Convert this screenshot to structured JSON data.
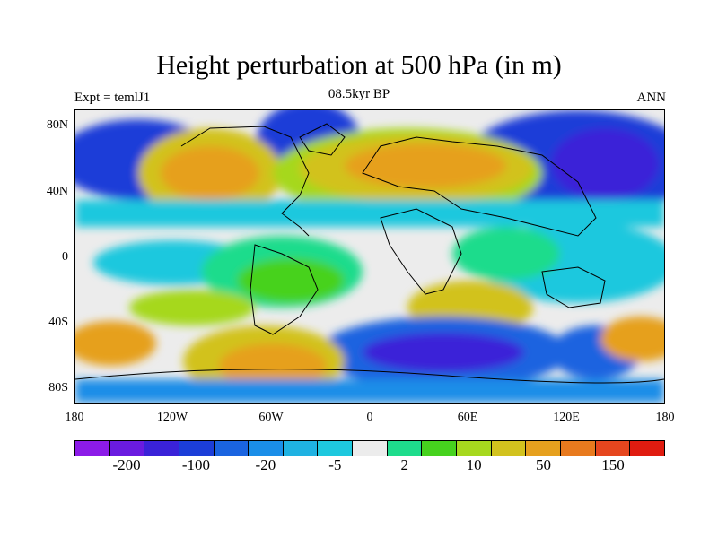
{
  "title": "Height perturbation at 500 hPa (in m)",
  "subtitle_left": "Expt = temlJ1",
  "subtitle_center": "08.5kyr BP",
  "subtitle_right": "ANN",
  "y_ticks": [
    "80N",
    "40N",
    "0",
    "40S",
    "80S"
  ],
  "x_ticks": [
    "180",
    "120W",
    "60W",
    "0",
    "60E",
    "120E",
    "180"
  ],
  "colorbar": {
    "colors": [
      "#8c1be8",
      "#6a1be0",
      "#3a22d8",
      "#1c3ed8",
      "#1a64e0",
      "#1a8ee8",
      "#1fb2e2",
      "#1ec8de",
      "#ececec",
      "#1edc8c",
      "#46d21e",
      "#a6d81e",
      "#d2c21e",
      "#e6a01e",
      "#e87a1e",
      "#e6461e",
      "#e01c10"
    ],
    "labels": [
      "-200",
      "-100",
      "-20",
      "-5",
      "2",
      "10",
      "50",
      "150"
    ]
  },
  "map_colors": {
    "background": "#ececec",
    "land_outline": "#000000"
  }
}
